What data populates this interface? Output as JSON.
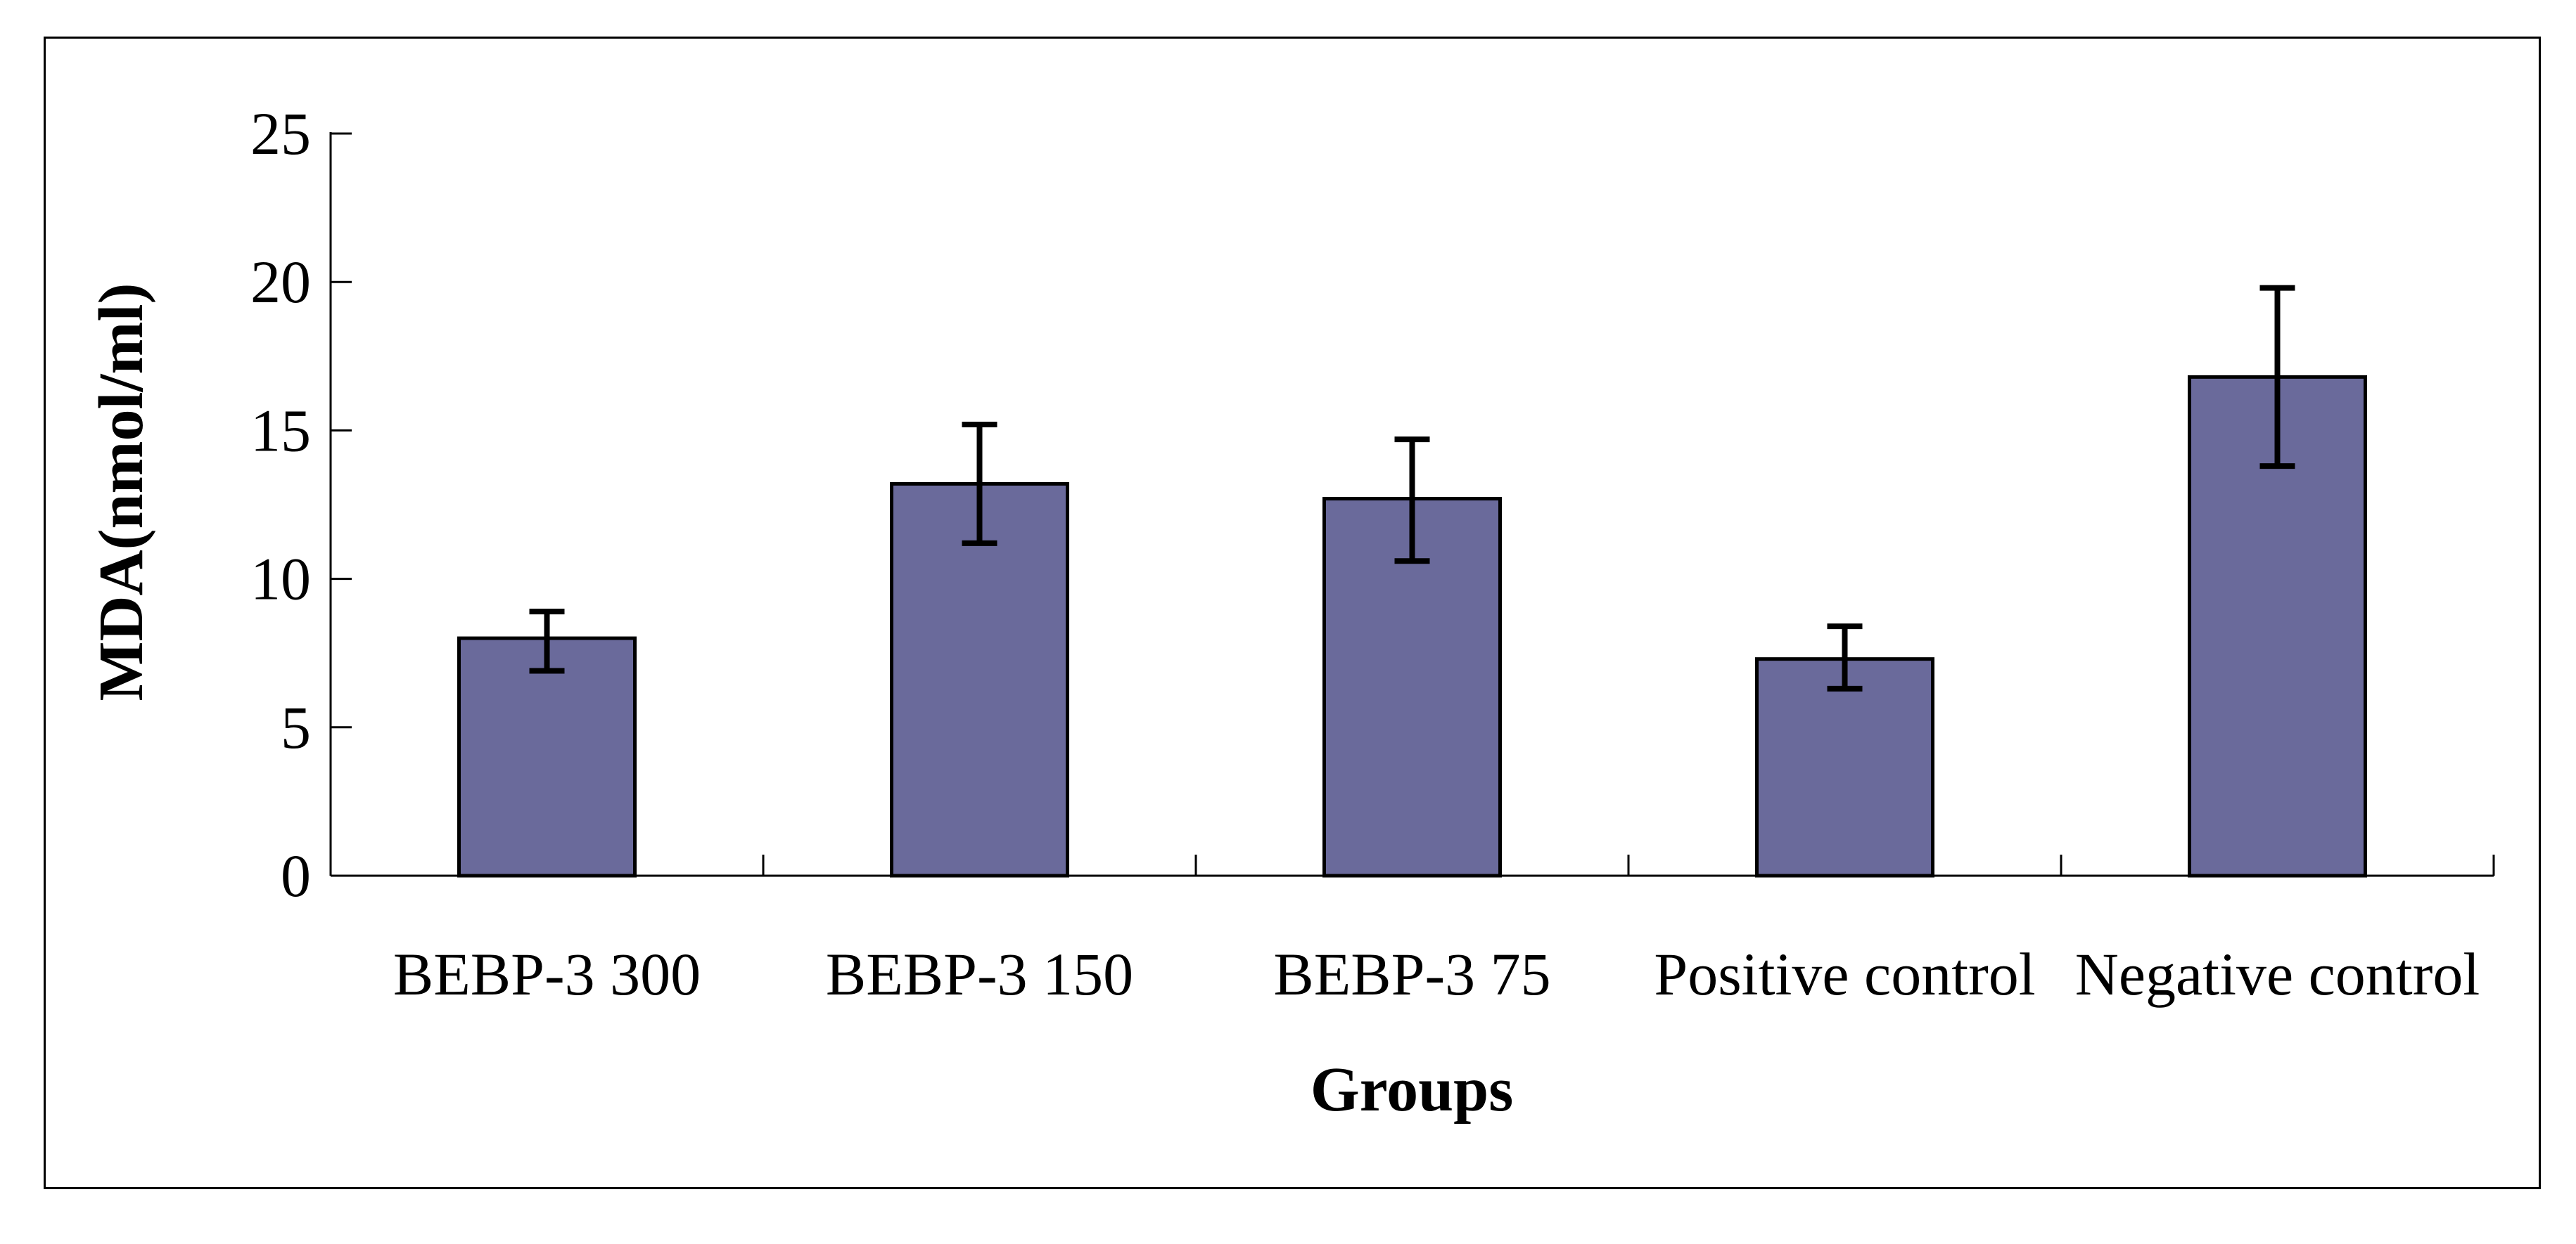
{
  "figure": {
    "background": "#ffffff",
    "border_color": "#000000"
  },
  "chart_data": {
    "type": "bar",
    "title": "",
    "categories": [
      "BEBP-3 300",
      "BEBP-3 150",
      "BEBP-3 75",
      "Positive control",
      "Negative control"
    ],
    "values": [
      8.0,
      13.2,
      12.7,
      7.3,
      16.8
    ],
    "error_plus": [
      0.9,
      2.0,
      2.0,
      1.1,
      3.0
    ],
    "error_minus": [
      1.1,
      2.0,
      2.1,
      1.0,
      3.0
    ],
    "xlabel": "Groups",
    "ylabel": "MDA(nmol/ml)",
    "ylim": [
      0,
      25
    ],
    "yticks": [
      0,
      5,
      10,
      15,
      20,
      25
    ],
    "ytick_labels": [
      "0",
      "5",
      "10",
      "15",
      "20",
      "25"
    ],
    "grid": false,
    "legend_position": "none",
    "bar_color": "#6A6A9B",
    "bar_border_color": "#000000",
    "error_bar_color": "#000000",
    "axis_color": "#000000"
  }
}
